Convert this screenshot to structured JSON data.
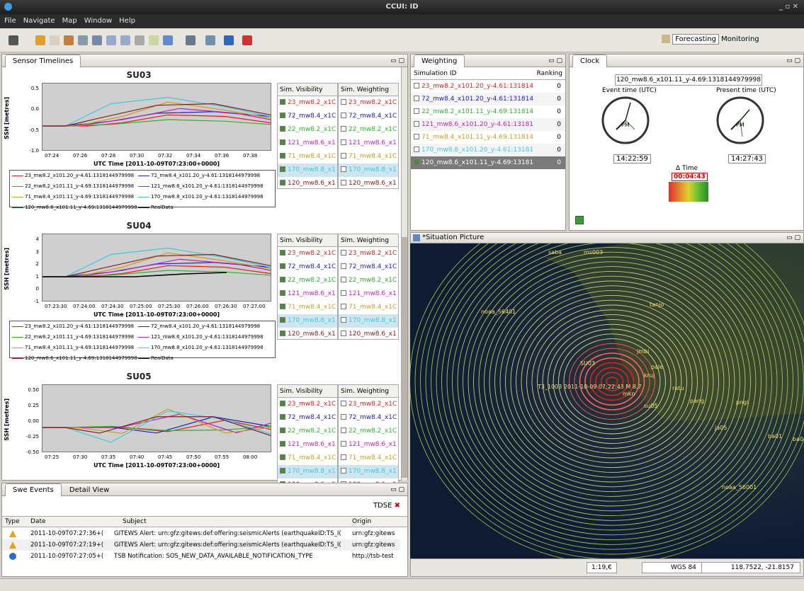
{
  "window": {
    "title": "CCUI: ID"
  },
  "menu": [
    "File",
    "Navigate",
    "Map",
    "Window",
    "Help"
  ],
  "perspectives": {
    "forecasting": "Forecasting",
    "monitoring": "Monitoring"
  },
  "sensor_panel": {
    "tab": "Sensor Timelines",
    "xlabel": "UTC Time [2011-10-09T07:23:00+0000]",
    "ylabel": "SSH [metres]",
    "charts": [
      {
        "title": "SU03",
        "yticks": [
          "0.5",
          "0.0",
          "-0.5",
          "-1.0"
        ],
        "xticks": [
          "07:24",
          "07:26",
          "07:28",
          "07:30",
          "07:32",
          "07:34",
          "07:36",
          "07:38"
        ]
      },
      {
        "title": "SU04",
        "yticks": [
          "4",
          "3",
          "2",
          "1",
          "0",
          "-1"
        ],
        "xticks": [
          "07:23:30",
          "07:24:00",
          "07:24:30",
          "07:25:00",
          "07:25:30",
          "07:26:00",
          "07:26:30",
          "07:27:00"
        ]
      },
      {
        "title": "SU05",
        "yticks": [
          "0.50",
          "0.25",
          "0.00",
          "-0.25",
          "-0.50"
        ],
        "xticks": [
          "07:25",
          "07:30",
          "07:35",
          "07:40",
          "07:45",
          "07:50",
          "07:55",
          "08:00"
        ]
      }
    ],
    "col_visibility": "Sim. Visibility",
    "col_weighting": "Sim. Weighting",
    "sims": [
      {
        "label": "23_mw8.2_x1C",
        "color": "#e02020"
      },
      {
        "label": "72_mw8.4_x1C",
        "color": "#2020c0"
      },
      {
        "label": "22_mw8.2_x1C",
        "color": "#30b030"
      },
      {
        "label": "121_mw8.6_x1",
        "color": "#c020c0"
      },
      {
        "label": "71_mw8.4_x1C",
        "color": "#c8a020"
      },
      {
        "label": "170_mw8.8_x1",
        "color": "#40c8e0"
      },
      {
        "label": "120_mw8.6_x1",
        "color": "#802020"
      }
    ],
    "legend": [
      {
        "text": "23_mw8.2_x101.20_y-4.61:1318144979998",
        "color": "#e02020"
      },
      {
        "text": "72_mw8.4_x101.20_y-4.61:1318144979998",
        "color": "#2020c0"
      },
      {
        "text": "22_mw8.2_x101.11_y-4.69:1318144979998",
        "color": "#30b030"
      },
      {
        "text": "121_mw8.6_x101.20_y-4.61:1318144979998",
        "color": "#c020c0"
      },
      {
        "text": "71_mw8.4_x101.11_y-4.69:1318144979998",
        "color": "#c8a020"
      },
      {
        "text": "170_mw8.8_x101.20_y-4.61:1318144979998",
        "color": "#40c8e0"
      },
      {
        "text": "120_mw8.6_x101.11_y-4.69:1318144979998",
        "color": "#802020"
      },
      {
        "text": "RealData",
        "color": "#000000"
      }
    ]
  },
  "weighting": {
    "tab": "Weighting",
    "col_id": "Simulation ID",
    "col_rank": "Ranking",
    "rows": [
      {
        "id": "23_mw8.2_x101.20_y-4.61:131814",
        "rank": "0",
        "color": "#e02020"
      },
      {
        "id": "72_mw8.4_x101.20_y-4.61:131814",
        "rank": "0",
        "color": "#2020c0"
      },
      {
        "id": "22_mw8.2_x101.11_y-4.69:131814",
        "rank": "0",
        "color": "#30b030"
      },
      {
        "id": "121_mw8.6_x101.20_y-4.61:13181",
        "rank": "0",
        "color": "#c020c0"
      },
      {
        "id": "71_mw8.4_x101.11_y-4.69:131814",
        "rank": "0",
        "color": "#c8a020"
      },
      {
        "id": "170_mw8.8_x101.20_y-4.61:13181",
        "rank": "0",
        "color": "#40c8e0"
      },
      {
        "id": "120_mw8.6_x101.11_y-4.69:13181",
        "rank": "0",
        "color": "#ffffff"
      }
    ]
  },
  "clock": {
    "tab": "Clock",
    "sim": "120_mw8.6_x101.11_y-4.69:1318144979998",
    "event_label": "Event time (UTC)",
    "present_label": "Present time (UTC)",
    "event_time": "14:22:59",
    "present_time": "14:27:43",
    "delta_label": "Δ Time",
    "delta": "00:04:43",
    "pm": "PM"
  },
  "situation": {
    "tab": "*Situation Picture",
    "scale": "1:19,€",
    "crs": "WGS 84",
    "coords": "118.7522, -21.8157",
    "labels": [
      "saba",
      "ms003",
      "tanjo",
      "noaa_56401",
      "SU03",
      "jmbi",
      "pale",
      "kruj",
      "T3_1003 2011-10-09 07:22:43 M 8.7",
      "mkn",
      "ratu",
      "pang",
      "su05",
      "pngi",
      "ja05",
      "ba01",
      "ba02",
      "noaa_56001"
    ]
  },
  "events": {
    "tab1": "Swe Events",
    "tab2": "Detail View",
    "tdse": "TDSE",
    "cols": [
      "Type",
      "Date",
      "Subject",
      "Origin"
    ],
    "rows": [
      {
        "date": "2011-10-09T07:27:36+(",
        "subject": "GITEWS Alert: urn:gfz:gitews:def:offering:seismicAlerts (earthquakeID:TS_I(",
        "origin": "urn:gfz:gitews",
        "type": "warn"
      },
      {
        "date": "2011-10-09T07:27:19+(",
        "subject": "GITEWS Alert: urn:gfz:gitews:def:offering:seismicAlerts (earthquakeID:TS_I(",
        "origin": "urn:gfz:gitews",
        "type": "warn"
      },
      {
        "date": "2011-10-09T07:27:05+(",
        "subject": "TSB Notification: SOS_NEW_DATA_AVAILABLE_NOTIFICATION_TYPE",
        "origin": "http://tsb-test",
        "type": "info"
      }
    ]
  }
}
